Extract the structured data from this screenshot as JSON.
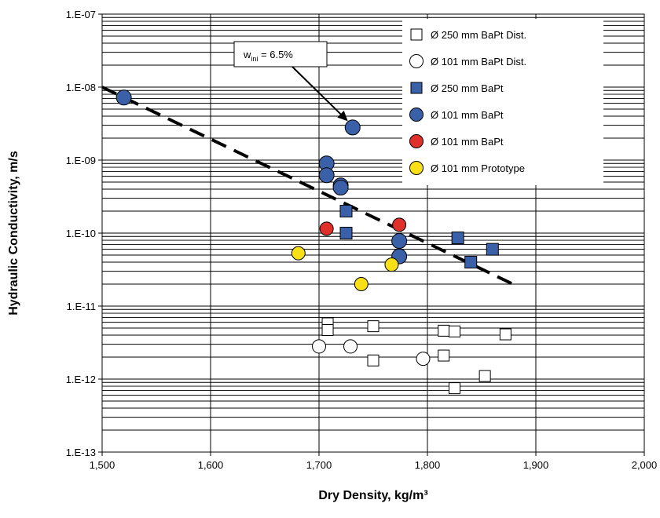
{
  "chart_data": {
    "type": "scatter",
    "xlabel": "Dry Density, kg/m³",
    "ylabel": "Hydraulic Conductivity, m/s",
    "x_scale": "linear",
    "y_scale": "log",
    "xlim": [
      1500,
      2000
    ],
    "ylim": [
      1e-13,
      1e-07
    ],
    "x_ticks": [
      1500,
      1600,
      1700,
      1800,
      1900,
      2000
    ],
    "x_tick_labels": [
      "1,500",
      "1,600",
      "1,700",
      "1,800",
      "1,900",
      "2,000"
    ],
    "y_ticks": [
      1e-13,
      1e-12,
      1e-11,
      1e-10,
      1e-09,
      1e-08,
      1e-07
    ],
    "y_tick_labels": [
      "1.E-13",
      "1.E-12",
      "1.E-11",
      "1.E-10",
      "1.E-09",
      "1.E-08",
      "1.E-07"
    ],
    "grid": true,
    "legend_position": "top-right",
    "series": [
      {
        "name": "Ø 250 mm BaPt Dist.",
        "marker": "square",
        "fill": "#ffffff",
        "points": [
          {
            "x": 1708,
            "y": 5.8e-12
          },
          {
            "x": 1708,
            "y": 4.7e-12
          },
          {
            "x": 1750,
            "y": 5.3e-12
          },
          {
            "x": 1815,
            "y": 4.6e-12
          },
          {
            "x": 1825,
            "y": 4.5e-12
          },
          {
            "x": 1872,
            "y": 4.1e-12
          },
          {
            "x": 1750,
            "y": 1.8e-12
          },
          {
            "x": 1815,
            "y": 2.1e-12
          },
          {
            "x": 1853,
            "y": 1.1e-12
          },
          {
            "x": 1825,
            "y": 7.5e-13
          }
        ]
      },
      {
        "name": "Ø 101 mm BaPt Dist.",
        "marker": "circle",
        "fill": "#ffffff",
        "points": [
          {
            "x": 1700,
            "y": 2.8e-12
          },
          {
            "x": 1729,
            "y": 2.8e-12
          },
          {
            "x": 1796,
            "y": 1.9e-12
          }
        ]
      },
      {
        "name": "Ø 250 mm BaPt",
        "marker": "square",
        "fill": "#3a60a8",
        "points": [
          {
            "x": 1725,
            "y": 2e-10
          },
          {
            "x": 1725,
            "y": 1e-10
          },
          {
            "x": 1828,
            "y": 8.6e-11
          },
          {
            "x": 1860,
            "y": 6e-11
          },
          {
            "x": 1840,
            "y": 4e-11
          }
        ]
      },
      {
        "name": "Ø 101 mm BaPt",
        "marker": "circle",
        "fill": "#3a60a8",
        "points": [
          {
            "x": 1520,
            "y": 7.2e-09
          },
          {
            "x": 1731,
            "y": 2.8e-09
          },
          {
            "x": 1707,
            "y": 9e-10
          },
          {
            "x": 1707,
            "y": 6.2e-10
          },
          {
            "x": 1720,
            "y": 4.5e-10
          },
          {
            "x": 1720,
            "y": 4.2e-10
          },
          {
            "x": 1774,
            "y": 7.8e-11
          },
          {
            "x": 1774,
            "y": 4.8e-11
          }
        ]
      },
      {
        "name": "Ø 101 mm BaPt",
        "marker": "circle",
        "fill": "#e0302c",
        "points": [
          {
            "x": 1707,
            "y": 1.15e-10
          },
          {
            "x": 1774,
            "y": 1.3e-10
          }
        ]
      },
      {
        "name": "Ø 101 mm Prototype",
        "marker": "circle",
        "fill": "#f7e016",
        "points": [
          {
            "x": 1681,
            "y": 5.3e-11
          },
          {
            "x": 1767,
            "y": 3.7e-11
          },
          {
            "x": 1739,
            "y": 2e-11
          }
        ]
      }
    ],
    "trend_line": {
      "style": "dashed",
      "from": {
        "x": 1500,
        "y": 1e-08
      },
      "to": {
        "x": 1882,
        "y": 1.9e-11
      }
    },
    "annotations": [
      {
        "text_main": "w",
        "text_sub": "ini",
        "text_tail": " = 6.5%",
        "arrow_to": {
          "x": 1731,
          "y": 2.8e-09
        }
      }
    ]
  }
}
